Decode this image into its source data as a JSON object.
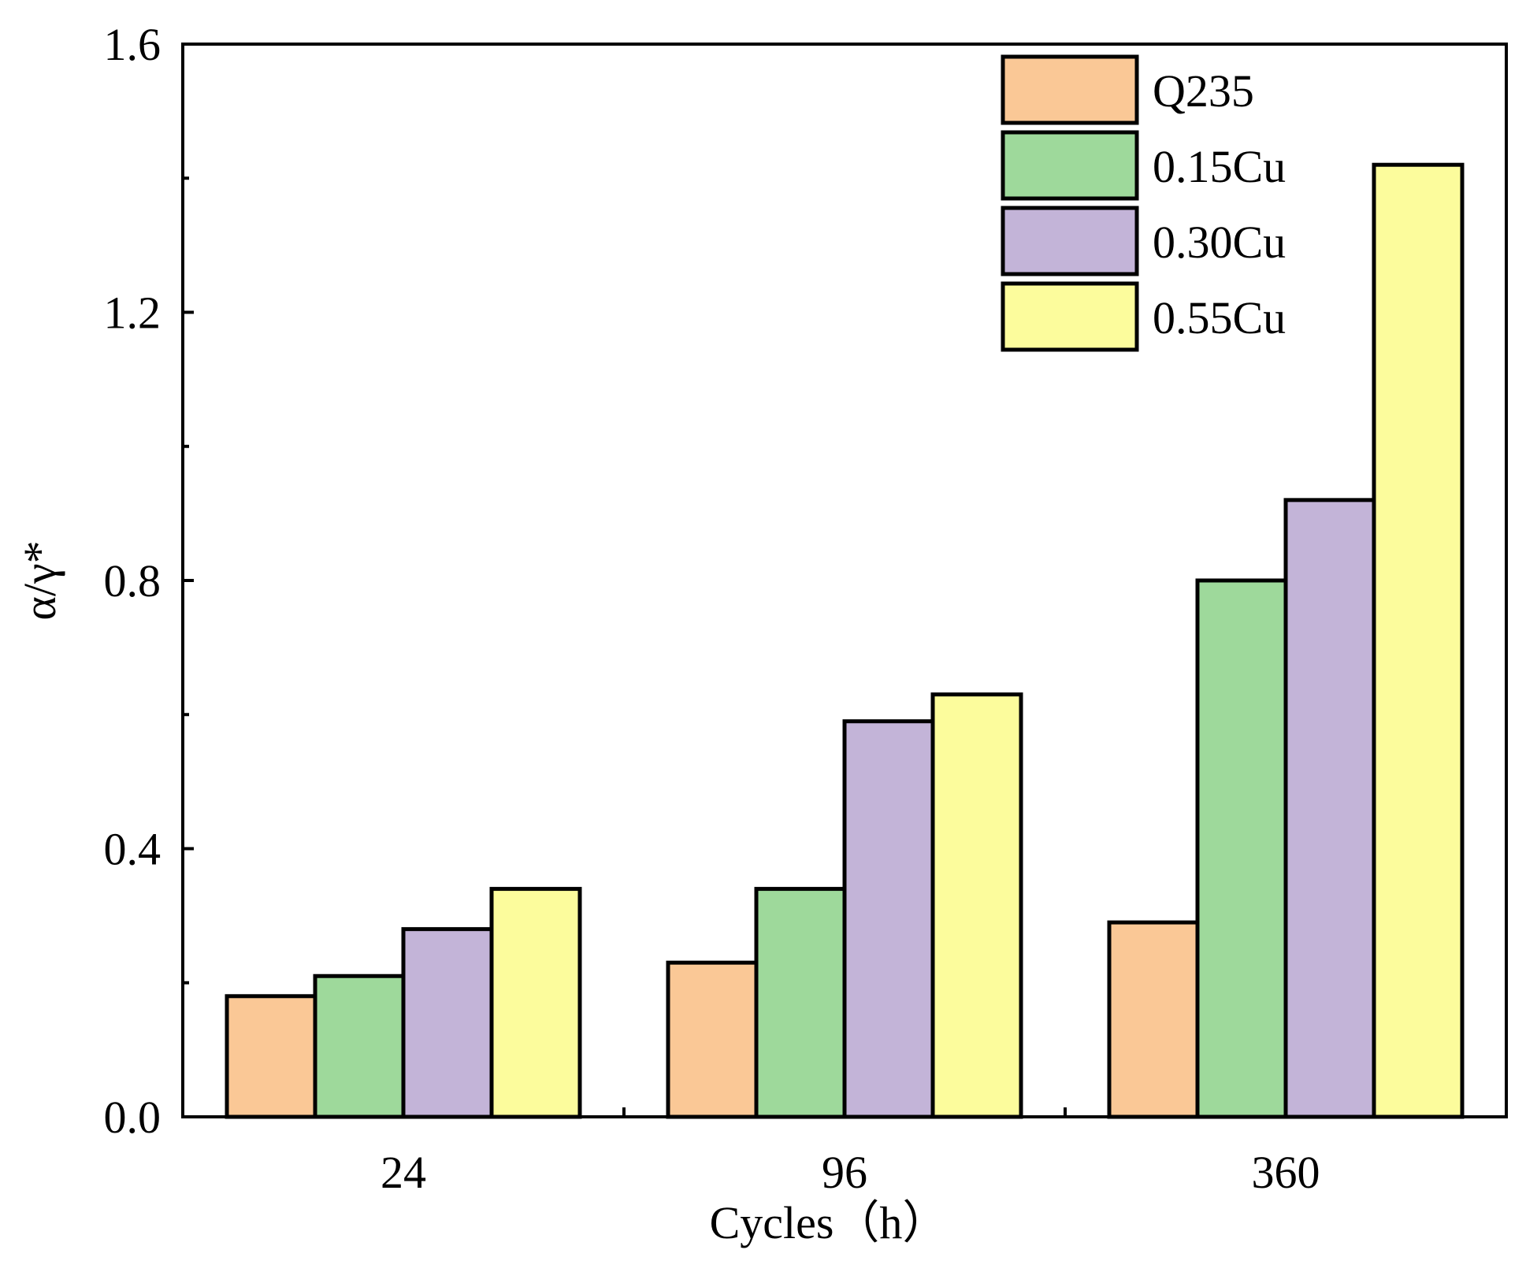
{
  "chart_data": {
    "type": "bar",
    "title": "",
    "xlabel": "Cycles（h）",
    "ylabel": "α/γ*",
    "categories": [
      "24",
      "96",
      "360"
    ],
    "ylim": [
      0,
      1.6
    ],
    "yticks": [
      0.0,
      0.4,
      0.8,
      1.2,
      1.6
    ],
    "ytick_labels": [
      "0.0",
      "0.4",
      "0.8",
      "1.2",
      "1.6"
    ],
    "minor_yticks": [
      0.2,
      0.6,
      1.0,
      1.4
    ],
    "legend_position": "top-right",
    "series": [
      {
        "name": "Q235",
        "color": "#FAC896",
        "values": [
          0.18,
          0.23,
          0.29
        ]
      },
      {
        "name": "0.15Cu",
        "color": "#9ED99B",
        "values": [
          0.21,
          0.34,
          0.8
        ]
      },
      {
        "name": "0.30Cu",
        "color": "#C3B4D8",
        "values": [
          0.28,
          0.59,
          0.92
        ]
      },
      {
        "name": "0.55Cu",
        "color": "#FCFC9C",
        "values": [
          0.34,
          0.63,
          1.42
        ]
      }
    ]
  }
}
